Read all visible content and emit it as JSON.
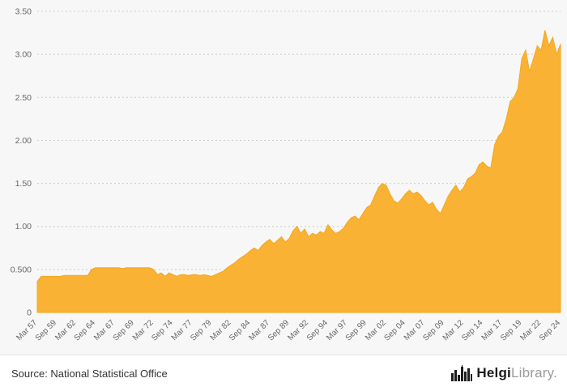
{
  "footer": {
    "source": "Source: National Statistical Office",
    "logo_bold": "Helgi",
    "logo_light": "Library."
  },
  "chart_data": {
    "type": "area",
    "title": "",
    "xlabel": "",
    "ylabel": "",
    "ylim": [
      0,
      3.5
    ],
    "grid": "dotted-horizontal",
    "legend": "none",
    "colors": {
      "area": "#f9b233",
      "area_edge": "#f3a81f",
      "grid": "#cccccc",
      "axis_text": "#666666",
      "background": "#f7f7f7"
    },
    "y_tick_labels": [
      "0",
      "0.500",
      "1.00",
      "1.50",
      "2.00",
      "2.50",
      "3.00",
      "3.50"
    ],
    "y_tick_values": [
      0,
      0.5,
      1.0,
      1.5,
      2.0,
      2.5,
      3.0,
      3.5
    ],
    "x_tick_labels": [
      "Mar 57",
      "Sep 59",
      "Mar 62",
      "Sep 64",
      "Mar 67",
      "Sep 69",
      "Mar 72",
      "Sep 74",
      "Mar 77",
      "Sep 79",
      "Mar 82",
      "Sep 84",
      "Mar 87",
      "Sep 89",
      "Mar 92",
      "Sep 94",
      "Mar 97",
      "Sep 99",
      "Mar 02",
      "Sep 04",
      "Mar 07",
      "Sep 09",
      "Mar 12",
      "Sep 14",
      "Mar 17",
      "Sep 19",
      "Mar 22",
      "Sep 24"
    ],
    "points_per_tick": 5,
    "frequency": "semiannual (Mar & Sep), Mar 1957 - Sep 2024",
    "values": [
      0.36,
      0.42,
      0.42,
      0.42,
      0.42,
      0.42,
      0.42,
      0.43,
      0.43,
      0.43,
      0.43,
      0.43,
      0.43,
      0.43,
      0.5,
      0.52,
      0.52,
      0.52,
      0.52,
      0.52,
      0.52,
      0.52,
      0.51,
      0.52,
      0.52,
      0.52,
      0.52,
      0.52,
      0.52,
      0.52,
      0.5,
      0.44,
      0.46,
      0.42,
      0.46,
      0.44,
      0.42,
      0.44,
      0.44,
      0.43,
      0.44,
      0.44,
      0.43,
      0.44,
      0.43,
      0.42,
      0.44,
      0.46,
      0.48,
      0.52,
      0.55,
      0.58,
      0.62,
      0.65,
      0.68,
      0.72,
      0.75,
      0.72,
      0.78,
      0.82,
      0.85,
      0.8,
      0.84,
      0.88,
      0.82,
      0.86,
      0.95,
      1.0,
      0.92,
      0.97,
      0.88,
      0.92,
      0.9,
      0.94,
      0.92,
      1.02,
      0.96,
      0.92,
      0.94,
      0.98,
      1.05,
      1.1,
      1.12,
      1.08,
      1.15,
      1.22,
      1.25,
      1.35,
      1.45,
      1.5,
      1.48,
      1.38,
      1.3,
      1.27,
      1.32,
      1.38,
      1.42,
      1.38,
      1.4,
      1.36,
      1.3,
      1.25,
      1.28,
      1.2,
      1.15,
      1.25,
      1.35,
      1.42,
      1.48,
      1.4,
      1.45,
      1.55,
      1.58,
      1.62,
      1.72,
      1.75,
      1.7,
      1.68,
      1.95,
      2.05,
      2.1,
      2.25,
      2.45,
      2.5,
      2.6,
      2.95,
      3.05,
      2.8,
      2.95,
      3.1,
      3.05,
      3.28,
      3.1,
      3.2,
      3.0,
      3.12
    ]
  }
}
